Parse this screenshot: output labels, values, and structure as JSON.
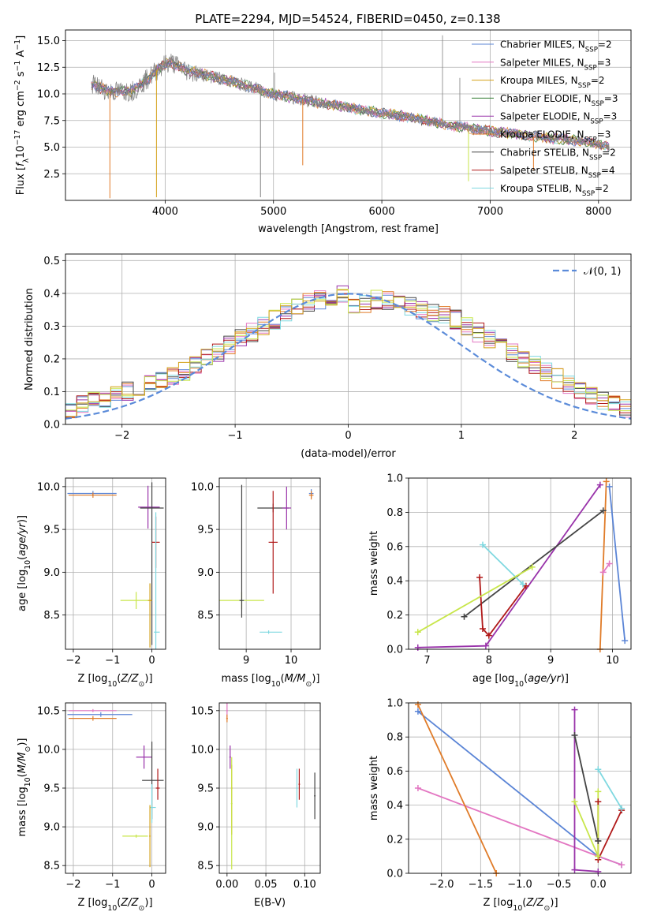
{
  "figure": {
    "title": "PLATE=2294, MJD=54524, FIBERID=0450, z=0.138"
  },
  "chart_data": [
    {
      "id": "spectrum",
      "type": "line",
      "xlabel": "wavelength [Angstrom, rest frame]",
      "ylabel": "Flux [f_λ 10^-17 erg cm^-2 s^-1 A^-1]",
      "xlim": [
        3080,
        8300
      ],
      "ylim": [
        0,
        16
      ],
      "xticks": [
        4000,
        5000,
        6000,
        7000,
        8000
      ],
      "yticks": [
        2.5,
        5.0,
        7.5,
        10.0,
        12.5,
        15.0
      ],
      "xtick_labels": [
        "4000",
        "5000",
        "6000",
        "7000",
        "8000"
      ],
      "ytick_labels": [
        "2.5",
        "5.0",
        "7.5",
        "10.0",
        "12.5",
        "15.0"
      ],
      "legend_position": "top-right",
      "data_color": "#808080",
      "continuum": {
        "x": [
          3300,
          3500,
          3700,
          3850,
          3950,
          4050,
          4200,
          4400,
          4600,
          4800,
          5000,
          5200,
          5400,
          5600,
          5800,
          6000,
          6200,
          6400,
          6600,
          6800,
          7000,
          7200,
          7400,
          7600,
          7800,
          8000,
          8100
        ],
        "y": [
          11.0,
          10.2,
          10.3,
          11.5,
          12.5,
          13.0,
          12.2,
          11.7,
          11.2,
          10.6,
          10.0,
          9.6,
          9.2,
          8.9,
          8.5,
          8.2,
          7.9,
          7.5,
          7.1,
          6.8,
          6.5,
          6.3,
          6.0,
          5.8,
          5.6,
          5.3,
          5.0
        ]
      },
      "series": [
        {
          "name": "Chabrier MILES, N_SSP=2",
          "color": "#5b85d6"
        },
        {
          "name": "Salpeter MILES, N_SSP=3",
          "color": "#e377c2"
        },
        {
          "name": "Kroupa MILES, N_SSP=2",
          "color": "#d4a017"
        },
        {
          "name": "Chabrier ELODIE, N_SSP=3",
          "color": "#2f7a2f"
        },
        {
          "name": "Salpeter ELODIE, N_SSP=3",
          "color": "#9933aa"
        },
        {
          "name": "Kroupa ELODIE, N_SSP=3",
          "color": "#e07b28"
        },
        {
          "name": "Chabrier STELIB, N_SSP=2",
          "color": "#444444"
        },
        {
          "name": "Salpeter STELIB, N_SSP=4",
          "color": "#b01818"
        },
        {
          "name": "Kroupa STELIB, N_SSP=2",
          "color": "#7fd8e0"
        }
      ]
    },
    {
      "id": "residuals",
      "type": "histogram",
      "xlabel": "(data-model)/error",
      "ylabel": "Normed distribution",
      "xlim": [
        -2.5,
        2.5
      ],
      "ylim": [
        0,
        0.52
      ],
      "xticks": [
        -2,
        -1,
        0,
        1,
        2
      ],
      "yticks": [
        0.0,
        0.1,
        0.2,
        0.3,
        0.4,
        0.5
      ],
      "xtick_labels": [
        "−2",
        "−1",
        "0",
        "1",
        "2"
      ],
      "ytick_labels": [
        "0.0",
        "0.1",
        "0.2",
        "0.3",
        "0.4",
        "0.5"
      ],
      "legend": "𝒩(0, 1)",
      "legend_position": "top-right",
      "gaussian_color": "#5b8bd9",
      "bin_width": 0.1,
      "bin_start": -2.5,
      "base_profile": [
        0.03,
        0.04,
        0.05,
        0.06,
        0.07,
        0.08,
        0.09,
        0.1,
        0.12,
        0.13,
        0.14,
        0.16,
        0.18,
        0.2,
        0.22,
        0.24,
        0.26,
        0.28,
        0.3,
        0.32,
        0.34,
        0.35,
        0.36,
        0.37,
        0.38,
        0.38,
        0.39,
        0.4,
        0.4,
        0.39,
        0.38,
        0.37,
        0.36,
        0.35,
        0.34,
        0.32,
        0.3,
        0.28,
        0.26,
        0.24,
        0.22,
        0.2,
        0.18,
        0.16,
        0.14,
        0.12,
        0.11,
        0.09,
        0.08,
        0.07,
        0.06,
        0.05,
        0.05,
        0.04,
        0.03,
        0.03,
        0.03,
        0.02,
        0.02,
        0.02,
        0.02,
        0.02,
        0.02,
        0.02,
        0.02,
        0.02,
        0.02,
        0.02,
        0.02,
        0.02
      ],
      "colors": [
        "#5b85d6",
        "#e377c2",
        "#e07b28",
        "#444444",
        "#9933aa",
        "#b01818",
        "#7fd8e0",
        "#c8e64a",
        "#d4a017"
      ]
    },
    {
      "id": "age_vs_Z",
      "type": "errorbar",
      "xlabel": "Z [log10(Z/Z⊙)]",
      "ylabel": "age [log10(age/yr)]",
      "xlim": [
        -2.2,
        0.35
      ],
      "ylim": [
        8.1,
        10.1
      ],
      "xticks": [
        -2,
        -1,
        0
      ],
      "yticks": [
        8.5,
        9.0,
        9.5,
        10.0
      ],
      "xtick_labels": [
        "−2",
        "−1",
        "0"
      ],
      "ytick_labels": [
        "8.5",
        "9.0",
        "9.5",
        "10.0"
      ],
      "points": [
        {
          "x": -1.5,
          "y": 9.92,
          "xerr": [
            0.65,
            0.6
          ],
          "yerr": [
            0.03,
            0.03
          ],
          "color": "#5b85d6"
        },
        {
          "x": -1.5,
          "y": 9.9,
          "xerr": [
            0.62,
            0.6
          ],
          "yerr": [
            0.03,
            0.03
          ],
          "color": "#e07b28"
        },
        {
          "x": -0.1,
          "y": 9.76,
          "xerr": [
            0.25,
            0.3
          ],
          "yerr": [
            0.25,
            0.25
          ],
          "color": "#9933aa"
        },
        {
          "x": 0.0,
          "y": 9.75,
          "xerr": [
            0.3,
            0.3
          ],
          "yerr": [
            1.6,
            0.3
          ],
          "color": "#444444"
        },
        {
          "x": 0.1,
          "y": 9.35,
          "xerr": [
            0.1,
            0.1
          ],
          "yerr": [
            0.3,
            0.3
          ],
          "color": "#b01818"
        },
        {
          "x": -0.4,
          "y": 8.67,
          "xerr": [
            0.4,
            0.4
          ],
          "yerr": [
            0.1,
            0.1
          ],
          "color": "#c8e64a"
        },
        {
          "x": -0.05,
          "y": 8.67,
          "xerr": [
            0.05,
            0.05
          ],
          "yerr": [
            0.55,
            0.2
          ],
          "color": "#d4a017"
        },
        {
          "x": 0.1,
          "y": 8.3,
          "xerr": [
            0.05,
            0.1
          ],
          "yerr": [
            0.2,
            1.4
          ],
          "color": "#7fd8e0"
        }
      ]
    },
    {
      "id": "age_vs_mass",
      "type": "errorbar",
      "xlabel": "mass [log10(M/M⊙)]",
      "ylabel": "",
      "xlim": [
        8.4,
        10.65
      ],
      "ylim": [
        8.1,
        10.1
      ],
      "xticks": [
        9,
        10
      ],
      "yticks": [
        8.5,
        9.0,
        9.5,
        10.0
      ],
      "xtick_labels": [
        "9",
        "10"
      ],
      "ytick_labels": [
        "8.5",
        "9.0",
        "9.5",
        "10.0"
      ],
      "points": [
        {
          "x": 10.45,
          "y": 9.92,
          "xerr": [
            0.05,
            0.05
          ],
          "yerr": [
            0.05,
            0.05
          ],
          "color": "#5b85d6"
        },
        {
          "x": 10.45,
          "y": 9.9,
          "xerr": [
            0.05,
            0.05
          ],
          "yerr": [
            0.05,
            0.05
          ],
          "color": "#e07b28"
        },
        {
          "x": 9.6,
          "y": 9.75,
          "xerr": [
            0.35,
            0.35
          ],
          "yerr": [
            0.05,
            0.05
          ],
          "color": "#444444"
        },
        {
          "x": 9.9,
          "y": 9.75,
          "xerr": [
            0.1,
            0.1
          ],
          "yerr": [
            0.25,
            0.25
          ],
          "color": "#9933aa"
        },
        {
          "x": 9.6,
          "y": 9.35,
          "xerr": [
            0.1,
            0.1
          ],
          "yerr": [
            0.6,
            0.6
          ],
          "color": "#b01818"
        },
        {
          "x": 8.9,
          "y": 8.67,
          "xerr": [
            0.6,
            0.5
          ],
          "yerr": [
            0.1,
            0.1
          ],
          "color": "#c8e64a"
        },
        {
          "x": 8.9,
          "y": 8.67,
          "xerr": [
            0.05,
            0.05
          ],
          "yerr": [
            0.2,
            1.35
          ],
          "color": "#444444"
        },
        {
          "x": 9.5,
          "y": 8.3,
          "xerr": [
            0.2,
            0.3
          ],
          "yerr": [
            0.02,
            0.02
          ],
          "color": "#7fd8e0"
        }
      ]
    },
    {
      "id": "massweight_vs_age",
      "type": "line",
      "xlabel": "age [log10(age/yr)]",
      "ylabel": "mass weight",
      "xlim": [
        6.7,
        10.3
      ],
      "ylim": [
        0,
        1.0
      ],
      "xticks": [
        7,
        8,
        9,
        10
      ],
      "yticks": [
        0.0,
        0.2,
        0.4,
        0.6,
        0.8,
        1.0
      ],
      "xtick_labels": [
        "7",
        "8",
        "9",
        "10"
      ],
      "ytick_labels": [
        "0.0",
        "0.2",
        "0.4",
        "0.6",
        "0.8",
        "1.0"
      ],
      "series": [
        {
          "name": "Chabrier MILES",
          "color": "#5b85d6",
          "x": [
            9.95,
            10.2
          ],
          "y": [
            0.95,
            0.05
          ]
        },
        {
          "name": "Salpeter MILES",
          "color": "#e377c2",
          "x": [
            9.85,
            9.95
          ],
          "y": [
            0.45,
            0.5
          ]
        },
        {
          "name": "Kroupa MILES",
          "color": "#e07b28",
          "x": [
            9.8,
            9.9
          ],
          "y": [
            0.0,
            0.98
          ]
        },
        {
          "name": "Salpeter ELODIE",
          "color": "#9933aa",
          "x": [
            6.85,
            7.95,
            9.8
          ],
          "y": [
            0.01,
            0.02,
            0.96
          ]
        },
        {
          "name": "Chabrier STELIB",
          "color": "#444444",
          "x": [
            7.6,
            9.85
          ],
          "y": [
            0.19,
            0.81
          ]
        },
        {
          "name": "Salpeter STELIB",
          "color": "#b01818",
          "x": [
            7.85,
            7.9,
            8.0,
            8.6
          ],
          "y": [
            0.42,
            0.12,
            0.08,
            0.37
          ]
        },
        {
          "name": "Kroupa STELIB",
          "color": "#7fd8e0",
          "x": [
            7.9,
            8.55
          ],
          "y": [
            0.61,
            0.38
          ]
        },
        {
          "name": "Kroupa ELODIE",
          "color": "#c8e64a",
          "x": [
            6.85,
            8.7
          ],
          "y": [
            0.1,
            0.48
          ]
        }
      ]
    },
    {
      "id": "mass_vs_Z",
      "type": "errorbar",
      "xlabel": "Z [log10(Z/Z⊙)]",
      "ylabel": "mass [log10(M/M⊙)]",
      "xlim": [
        -2.2,
        0.35
      ],
      "ylim": [
        8.4,
        10.6
      ],
      "xticks": [
        -2,
        -1,
        0
      ],
      "yticks": [
        8.5,
        9.0,
        9.5,
        10.0,
        10.5
      ],
      "xtick_labels": [
        "−2",
        "−1",
        "0"
      ],
      "ytick_labels": [
        "8.5",
        "9.0",
        "9.5",
        "10.0",
        "10.5"
      ],
      "points": [
        {
          "x": -1.5,
          "y": 10.5,
          "xerr": [
            0.62,
            0.6
          ],
          "yerr": [
            0.02,
            0.02
          ],
          "color": "#e377c2"
        },
        {
          "x": -1.3,
          "y": 10.45,
          "xerr": [
            0.85,
            0.8
          ],
          "yerr": [
            0.03,
            0.03
          ],
          "color": "#5b85d6"
        },
        {
          "x": -1.5,
          "y": 10.4,
          "xerr": [
            0.62,
            0.6
          ],
          "yerr": [
            0.03,
            0.03
          ],
          "color": "#e07b28"
        },
        {
          "x": -0.2,
          "y": 9.9,
          "xerr": [
            0.2,
            0.2
          ],
          "yerr": [
            0.15,
            0.15
          ],
          "color": "#9933aa"
        },
        {
          "x": 0.0,
          "y": 9.6,
          "xerr": [
            0.25,
            0.3
          ],
          "yerr": [
            0.5,
            0.5
          ],
          "color": "#444444"
        },
        {
          "x": 0.15,
          "y": 9.5,
          "xerr": [
            0.05,
            0.05
          ],
          "yerr": [
            0.15,
            0.25
          ],
          "color": "#b01818"
        },
        {
          "x": 0.0,
          "y": 9.25,
          "xerr": [
            0.05,
            0.1
          ],
          "yerr": [
            0.2,
            0.3
          ],
          "color": "#7fd8e0"
        },
        {
          "x": -0.4,
          "y": 8.88,
          "xerr": [
            0.35,
            0.3
          ],
          "yerr": [
            0.02,
            0.02
          ],
          "color": "#c8e64a"
        },
        {
          "x": -0.05,
          "y": 8.88,
          "xerr": [
            0.02,
            0.02
          ],
          "yerr": [
            0.4,
            0.4
          ],
          "color": "#d4a017"
        }
      ]
    },
    {
      "id": "mass_vs_EBV",
      "type": "errorbar",
      "xlabel": "E(B-V)",
      "ylabel": "",
      "xlim": [
        -0.01,
        0.12
      ],
      "ylim": [
        8.4,
        10.6
      ],
      "xticks": [
        0.0,
        0.05,
        0.1
      ],
      "yticks": [
        8.5,
        9.0,
        9.5,
        10.0,
        10.5
      ],
      "xtick_labels": [
        "0.00",
        "0.05",
        "0.10"
      ],
      "ytick_labels": [
        "8.5",
        "9.0",
        "9.5",
        "10.0",
        "10.5"
      ],
      "points": [
        {
          "x": 0.0,
          "y": 10.5,
          "xerr": [
            0.001,
            0.001
          ],
          "yerr": [
            0.1,
            0.1
          ],
          "color": "#e377c2"
        },
        {
          "x": 0.0,
          "y": 10.4,
          "xerr": [
            0.001,
            0.001
          ],
          "yerr": [
            0.05,
            0.05
          ],
          "color": "#e07b28"
        },
        {
          "x": 0.004,
          "y": 9.9,
          "xerr": [
            0.001,
            0.001
          ],
          "yerr": [
            0.15,
            0.15
          ],
          "color": "#9933aa"
        },
        {
          "x": 0.006,
          "y": 9.5,
          "xerr": [
            0.001,
            0.001
          ],
          "yerr": [
            0.6,
            0.3
          ],
          "color": "#d4a017"
        },
        {
          "x": 0.006,
          "y": 9.3,
          "xerr": [
            0.001,
            0.001
          ],
          "yerr": [
            0.85,
            0.6
          ],
          "color": "#c8e64a"
        },
        {
          "x": 0.09,
          "y": 9.5,
          "xerr": [
            0.001,
            0.001
          ],
          "yerr": [
            0.25,
            0.25
          ],
          "color": "#7fd8e0"
        },
        {
          "x": 0.093,
          "y": 9.55,
          "xerr": [
            0.001,
            0.001
          ],
          "yerr": [
            0.2,
            0.2
          ],
          "color": "#b01818"
        },
        {
          "x": 0.113,
          "y": 9.4,
          "xerr": [
            0.001,
            0.001
          ],
          "yerr": [
            0.3,
            0.3
          ],
          "color": "#444444"
        }
      ]
    },
    {
      "id": "massweight_vs_Z",
      "type": "line",
      "xlabel": "Z [log10(Z/Z⊙)]",
      "ylabel": "mass weight",
      "xlim": [
        -2.42,
        0.42
      ],
      "ylim": [
        0,
        1.0
      ],
      "xticks": [
        -2.0,
        -1.5,
        -1.0,
        -0.5,
        0.0
      ],
      "yticks": [
        0.0,
        0.2,
        0.4,
        0.6,
        0.8,
        1.0
      ],
      "xtick_labels": [
        "−2.0",
        "−1.5",
        "−1.0",
        "−0.5",
        "0.0"
      ],
      "ytick_labels": [
        "0.0",
        "0.2",
        "0.4",
        "0.6",
        "0.8",
        "1.0"
      ],
      "series": [
        {
          "name": "Chabrier MILES",
          "color": "#5b85d6",
          "x": [
            -2.3,
            0.0,
            0.3
          ],
          "y": [
            0.95,
            0.1,
            0.05
          ]
        },
        {
          "name": "Salpeter MILES",
          "color": "#e377c2",
          "x": [
            -2.3,
            0.0,
            0.3
          ],
          "y": [
            0.5,
            0.1,
            0.05
          ]
        },
        {
          "name": "Kroupa MILES",
          "color": "#e07b28",
          "x": [
            -2.3,
            -1.3
          ],
          "y": [
            0.99,
            0.0
          ]
        },
        {
          "name": "Salpeter ELODIE",
          "color": "#9933aa",
          "x": [
            -0.3,
            -0.3,
            0.0
          ],
          "y": [
            0.96,
            0.02,
            0.01
          ]
        },
        {
          "name": "Chabrier STELIB",
          "color": "#444444",
          "x": [
            -0.3,
            0.0,
            0.0
          ],
          "y": [
            0.81,
            0.19,
            0.19
          ]
        },
        {
          "name": "Salpeter STELIB",
          "color": "#b01818",
          "x": [
            0.0,
            0.0,
            0.3
          ],
          "y": [
            0.42,
            0.08,
            0.37
          ]
        },
        {
          "name": "Kroupa STELIB",
          "color": "#7fd8e0",
          "x": [
            0.0,
            0.3
          ],
          "y": [
            0.61,
            0.38
          ]
        },
        {
          "name": "Kroupa ELODIE",
          "color": "#c8e64a",
          "x": [
            -0.3,
            0.0,
            0.0
          ],
          "y": [
            0.42,
            0.1,
            0.48
          ]
        }
      ]
    }
  ]
}
